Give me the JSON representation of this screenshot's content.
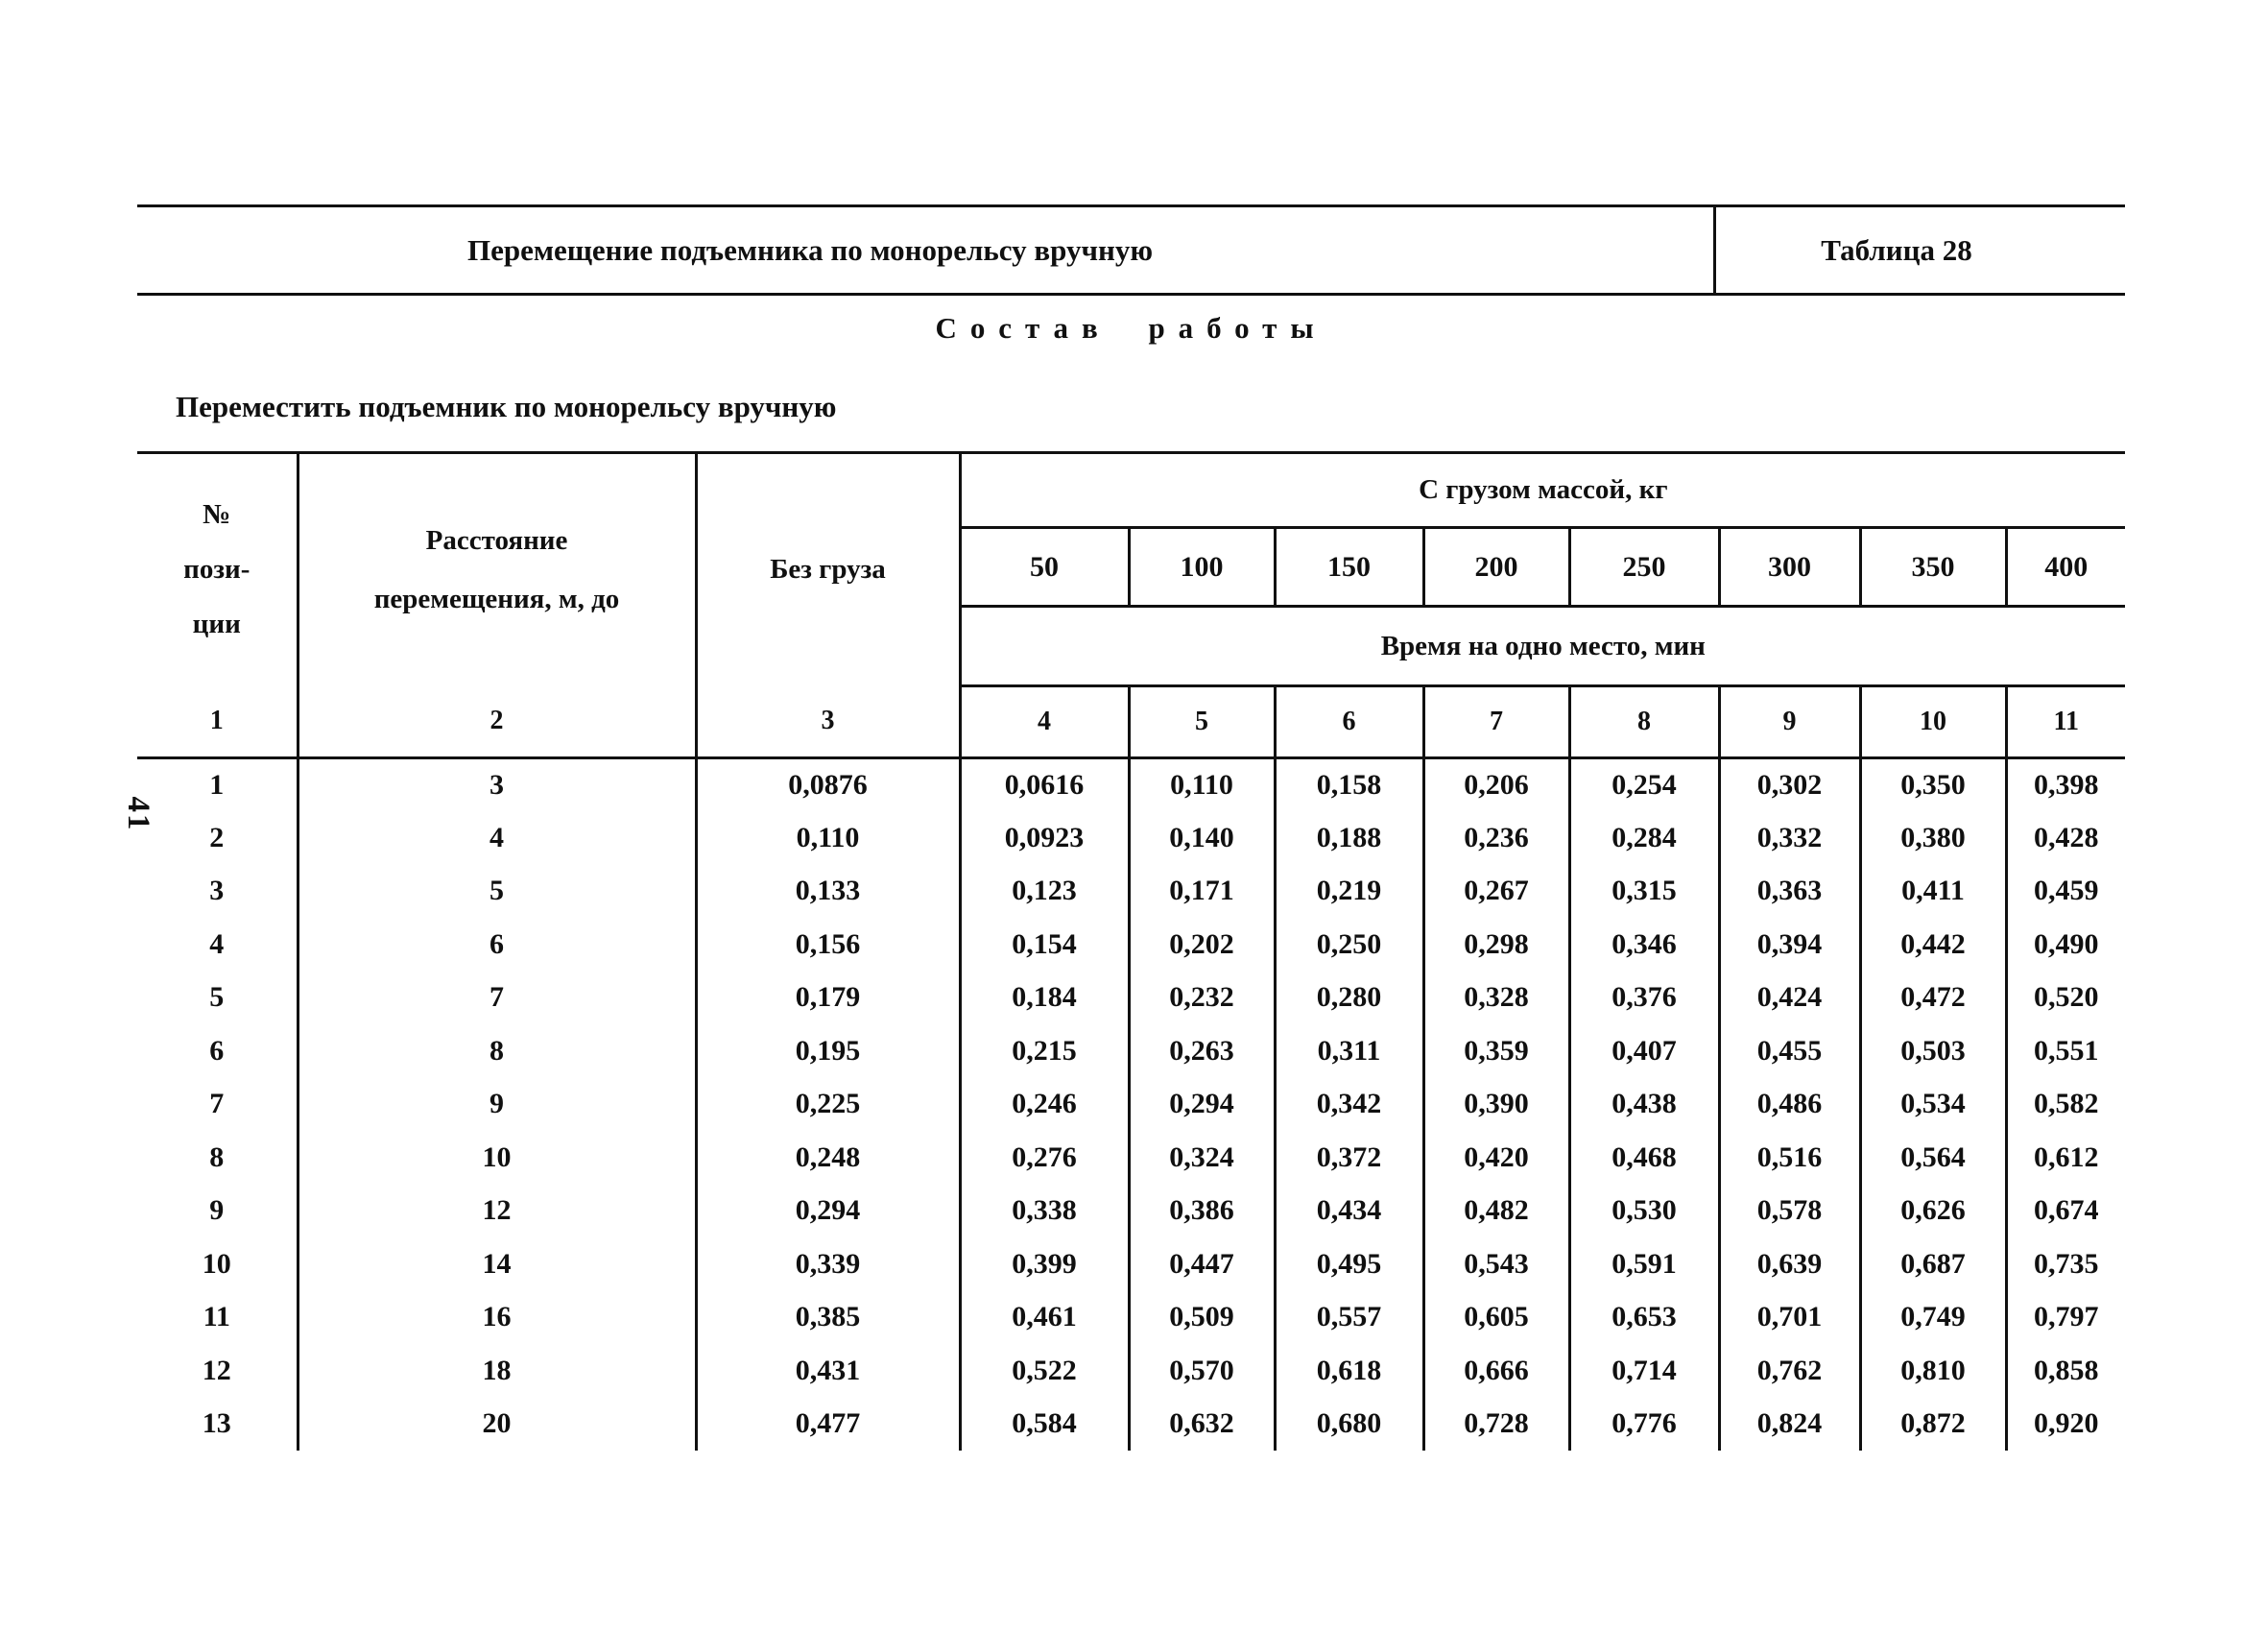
{
  "page_number": "41",
  "ink_color": "#101010",
  "header_band": {
    "title": "Перемещение подъемника по монорельсу вручную",
    "table_label": "Таблица 28"
  },
  "section_heading": "Состав работы",
  "work_description": "Переместить подъемник по монорельсу вручную",
  "table": {
    "header": {
      "position_lines": [
        "№",
        "пози-",
        "ции"
      ],
      "distance_lines": [
        "Расстояние",
        "перемещения, м, до"
      ],
      "no_load": "Без груза",
      "with_load": "С грузом массой, кг",
      "load_values": [
        "50",
        "100",
        "150",
        "200",
        "250",
        "300",
        "350",
        "400"
      ],
      "time_caption": "Время на одно место, мин"
    },
    "column_numbers": [
      "1",
      "2",
      "3",
      "4",
      "5",
      "6",
      "7",
      "8",
      "9",
      "10",
      "11"
    ],
    "rows": [
      [
        "1",
        "3",
        "0,0876",
        "0,0616",
        "0,110",
        "0,158",
        "0,206",
        "0,254",
        "0,302",
        "0,350",
        "0,398"
      ],
      [
        "2",
        "4",
        "0,110",
        "0,0923",
        "0,140",
        "0,188",
        "0,236",
        "0,284",
        "0,332",
        "0,380",
        "0,428"
      ],
      [
        "3",
        "5",
        "0,133",
        "0,123",
        "0,171",
        "0,219",
        "0,267",
        "0,315",
        "0,363",
        "0,411",
        "0,459"
      ],
      [
        "4",
        "6",
        "0,156",
        "0,154",
        "0,202",
        "0,250",
        "0,298",
        "0,346",
        "0,394",
        "0,442",
        "0,490"
      ],
      [
        "5",
        "7",
        "0,179",
        "0,184",
        "0,232",
        "0,280",
        "0,328",
        "0,376",
        "0,424",
        "0,472",
        "0,520"
      ],
      [
        "6",
        "8",
        "0,195",
        "0,215",
        "0,263",
        "0,311",
        "0,359",
        "0,407",
        "0,455",
        "0,503",
        "0,551"
      ],
      [
        "7",
        "9",
        "0,225",
        "0,246",
        "0,294",
        "0,342",
        "0,390",
        "0,438",
        "0,486",
        "0,534",
        "0,582"
      ],
      [
        "8",
        "10",
        "0,248",
        "0,276",
        "0,324",
        "0,372",
        "0,420",
        "0,468",
        "0,516",
        "0,564",
        "0,612"
      ],
      [
        "9",
        "12",
        "0,294",
        "0,338",
        "0,386",
        "0,434",
        "0,482",
        "0,530",
        "0,578",
        "0,626",
        "0,674"
      ],
      [
        "10",
        "14",
        "0,339",
        "0,399",
        "0,447",
        "0,495",
        "0,543",
        "0,591",
        "0,639",
        "0,687",
        "0,735"
      ],
      [
        "11",
        "16",
        "0,385",
        "0,461",
        "0,509",
        "0,557",
        "0,605",
        "0,653",
        "0,701",
        "0,749",
        "0,797"
      ],
      [
        "12",
        "18",
        "0,431",
        "0,522",
        "0,570",
        "0,618",
        "0,666",
        "0,714",
        "0,762",
        "0,810",
        "0,858"
      ],
      [
        "13",
        "20",
        "0,477",
        "0,584",
        "0,632",
        "0,680",
        "0,728",
        "0,776",
        "0,824",
        "0,872",
        "0,920"
      ]
    ]
  }
}
